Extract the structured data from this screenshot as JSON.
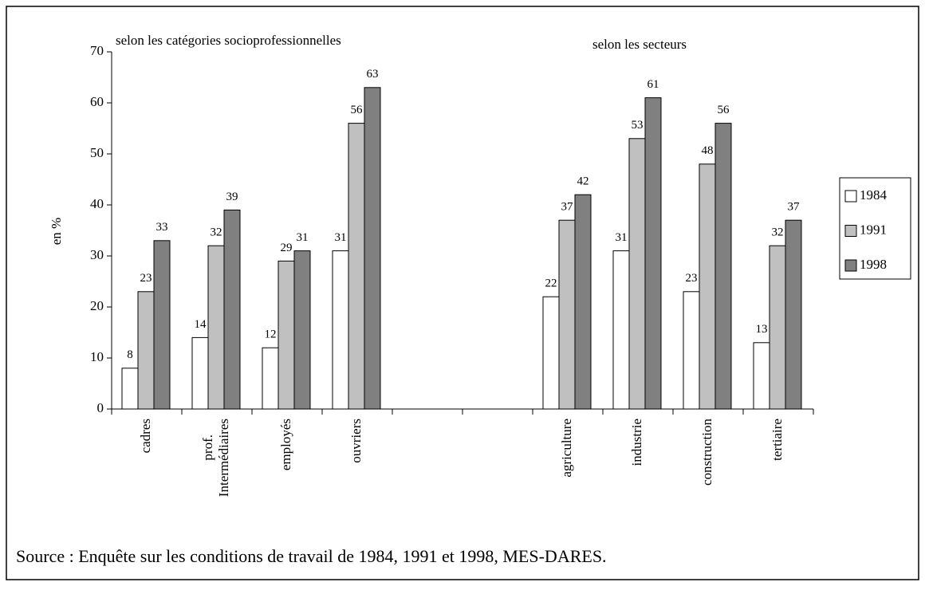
{
  "chart_data": {
    "type": "bar",
    "annotations": [
      "selon les catégories socioprofessionnelles",
      "selon les secteurs"
    ],
    "y_label": "en %",
    "source": "Source : Enquête sur les conditions de travail de 1984, 1991 et 1998, MES-DARES.",
    "categories": [
      "cadres",
      "prof. Intermédiaires",
      "employés",
      "ouvriers",
      null,
      null,
      "agriculture",
      "industrie",
      "construction",
      "tertiaire"
    ],
    "series": [
      {
        "name": "1984",
        "color": "#ffffff",
        "values": [
          8,
          14,
          12,
          31,
          null,
          null,
          22,
          31,
          23,
          13
        ]
      },
      {
        "name": "1991",
        "color": "#c0c0c0",
        "values": [
          23,
          32,
          29,
          56,
          null,
          null,
          37,
          53,
          48,
          32
        ]
      },
      {
        "name": "1998",
        "color": "#808080",
        "values": [
          33,
          39,
          31,
          63,
          null,
          null,
          42,
          61,
          56,
          37
        ]
      }
    ],
    "ylim": [
      0,
      70
    ],
    "yticks": [
      0,
      10,
      20,
      30,
      40,
      50,
      60,
      70
    ],
    "grid": false,
    "legend": "right"
  }
}
